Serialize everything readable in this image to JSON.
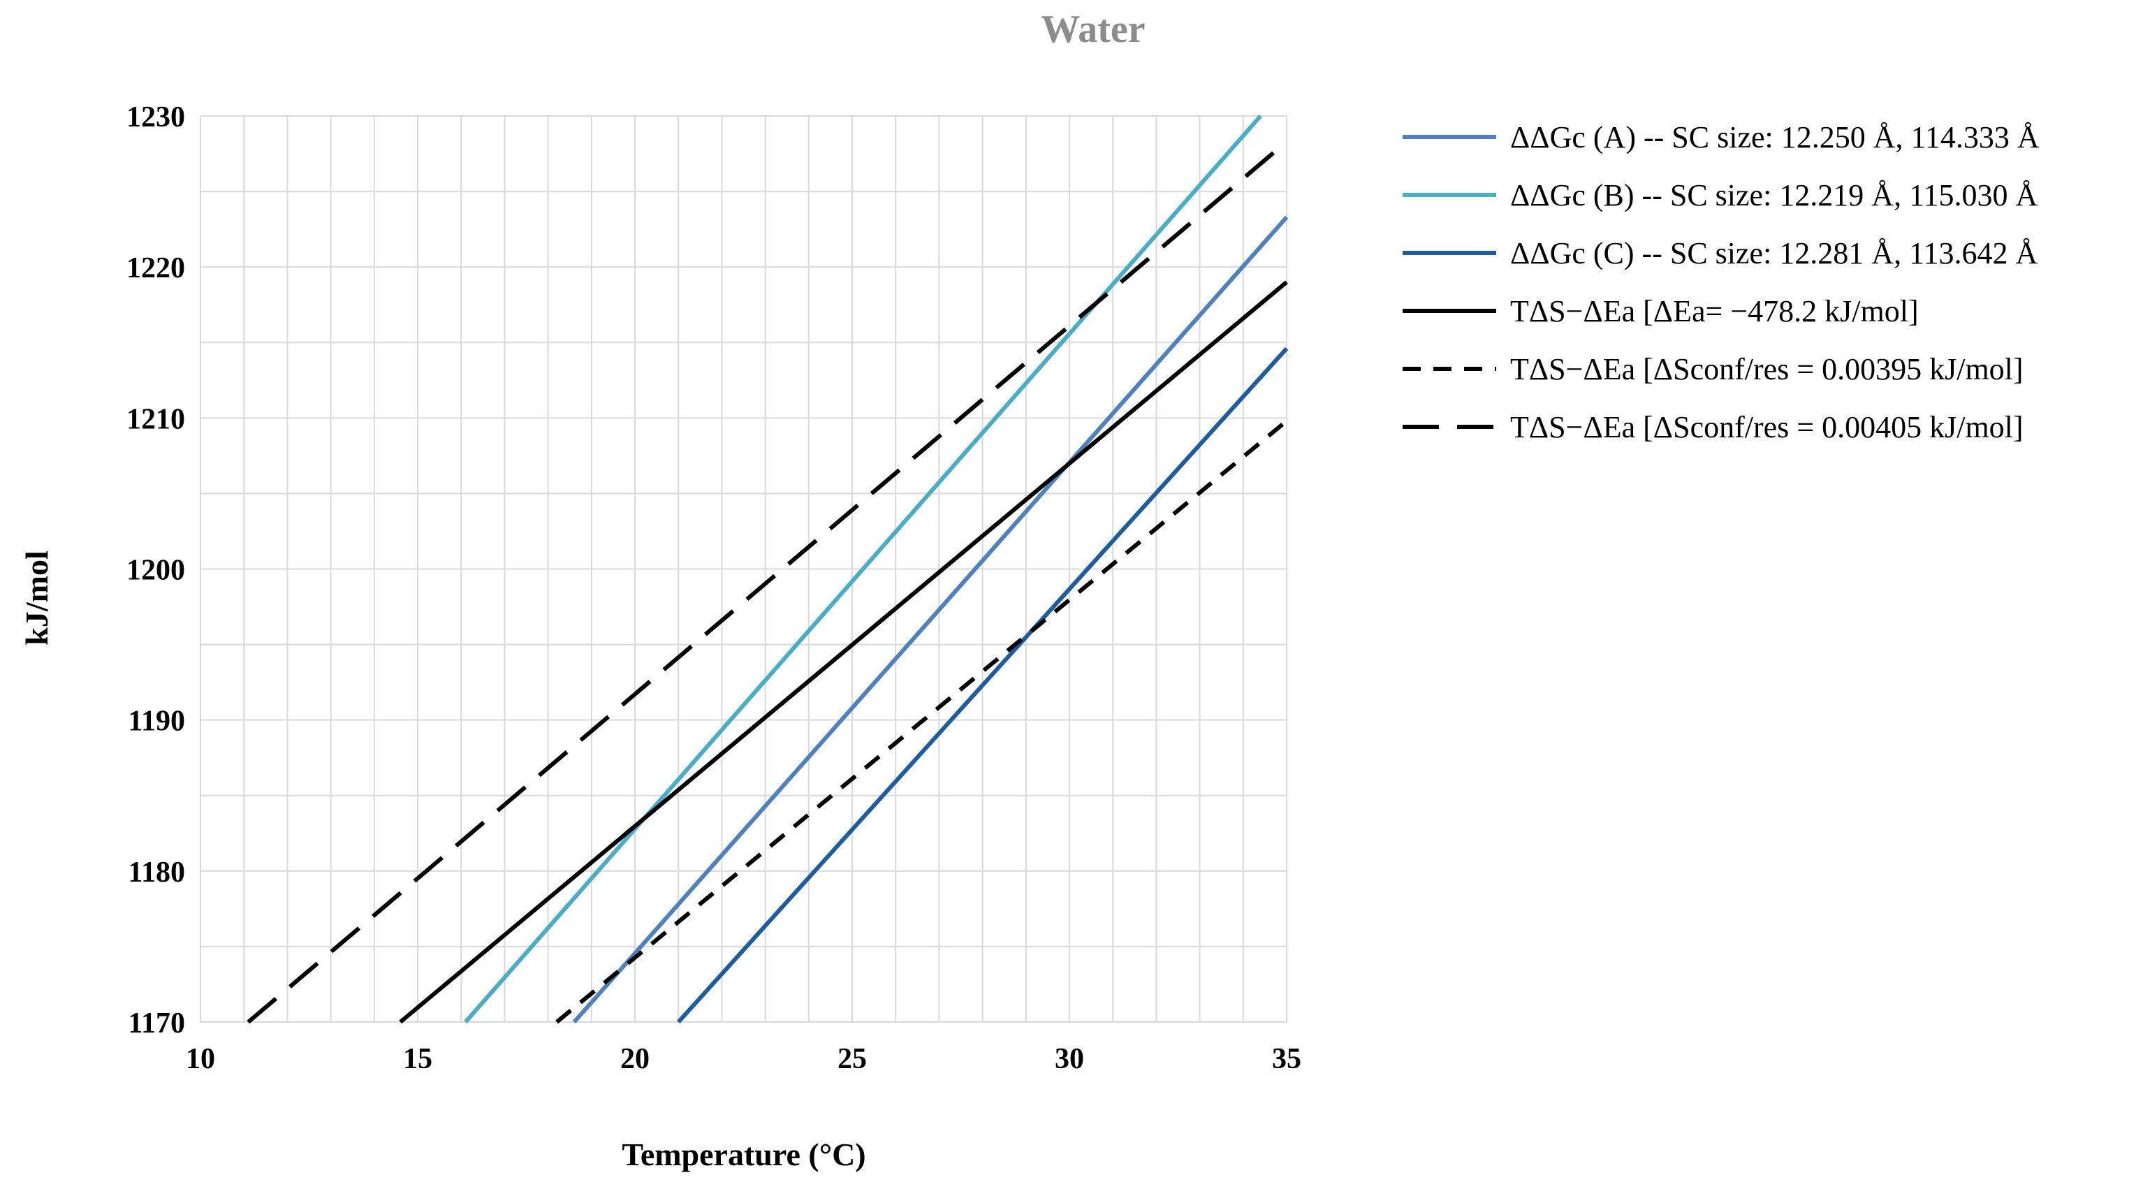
{
  "chart_data": {
    "type": "line",
    "title": "Water",
    "xlabel": "Temperature (°C)",
    "ylabel": "kJ/mol",
    "xlim": [
      10,
      35
    ],
    "ylim": [
      1170,
      1230
    ],
    "xticks": [
      10,
      15,
      20,
      25,
      30,
      35
    ],
    "yticks": [
      1170,
      1180,
      1190,
      1200,
      1210,
      1220,
      1230
    ],
    "x_minor_step": 1,
    "y_minor_step": 5,
    "grid": true,
    "legend_position": "right",
    "series": [
      {
        "name": "ΔΔGc (A) -- SC size: 12.250 Å, 114.333 Å",
        "color": "#4f81bd",
        "dash": "solid",
        "x": [
          18.6,
          35
        ],
        "y": [
          1170,
          1223.3
        ]
      },
      {
        "name": "ΔΔGc (B) -- SC size: 12.219 Å, 115.030 Å",
        "color": "#4bacc6",
        "dash": "solid",
        "x": [
          16.1,
          34.4
        ],
        "y": [
          1170,
          1230
        ]
      },
      {
        "name": "ΔΔGc (C) -- SC size: 12.281 Å, 113.642 Å",
        "color": "#1f5c9e",
        "dash": "solid",
        "x": [
          21.0,
          35
        ],
        "y": [
          1170,
          1214.6
        ]
      },
      {
        "name": "TΔS−ΔEa [ΔEa= −478.2 kJ/mol]",
        "color": "#000000",
        "dash": "solid",
        "x": [
          14.6,
          35
        ],
        "y": [
          1170,
          1219.0
        ]
      },
      {
        "name": "TΔS−ΔEa [ΔSconf/res = 0.00395 kJ/mol]",
        "color": "#000000",
        "dash": "short",
        "x": [
          18.2,
          35
        ],
        "y": [
          1170,
          1209.8
        ]
      },
      {
        "name": "TΔS−ΔEa [ΔSconf/res = 0.00405 kJ/mol]",
        "color": "#000000",
        "dash": "long",
        "x": [
          11.1,
          35
        ],
        "y": [
          1170,
          1228.3
        ]
      }
    ]
  }
}
